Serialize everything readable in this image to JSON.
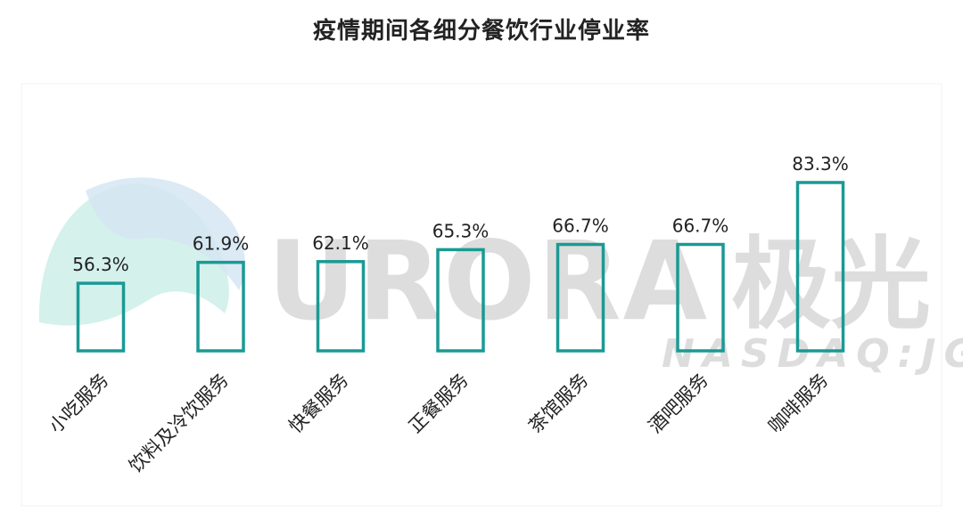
{
  "chart_data": {
    "type": "bar",
    "title": "疫情期间各细分餐饮行业停业率",
    "categories": [
      "小吃服务",
      "饮料及冷饮服务",
      "快餐服务",
      "正餐服务",
      "茶馆服务",
      "酒吧服务",
      "咖啡服务"
    ],
    "values": [
      56.3,
      61.9,
      62.1,
      65.3,
      66.7,
      66.7,
      83.3
    ],
    "value_labels": [
      "56.3%",
      "61.9%",
      "62.1%",
      "65.3%",
      "66.7%",
      "66.7%",
      "83.3%"
    ],
    "ylim": [
      0,
      100
    ],
    "xlabel": "",
    "ylabel": "",
    "grid": false,
    "bar_style": "outline",
    "bar_color": "#1a9a94"
  },
  "watermark": {
    "brand_latin": "URORA",
    "brand_cn": "极光",
    "ticker": "NASDAQ:JG"
  },
  "colors": {
    "bar_stroke": "#1a9a94",
    "watermark_text": "#c8c8c8",
    "watermark_logo_teal": "#cdeee9",
    "watermark_logo_blue": "#d5e6f3",
    "frame": "#eeeeee"
  }
}
